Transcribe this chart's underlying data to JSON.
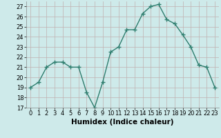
{
  "x": [
    0,
    1,
    2,
    3,
    4,
    5,
    6,
    7,
    8,
    9,
    10,
    11,
    12,
    13,
    14,
    15,
    16,
    17,
    18,
    19,
    20,
    21,
    22,
    23
  ],
  "y": [
    19,
    19.5,
    21,
    21.5,
    21.5,
    21,
    21,
    18.5,
    17,
    19.5,
    22.5,
    23,
    24.7,
    24.7,
    26.3,
    27,
    27.2,
    25.7,
    25.3,
    24.2,
    23,
    21.2,
    21,
    19
  ],
  "xlabel": "Humidex (Indice chaleur)",
  "ylim": [
    17,
    27.5
  ],
  "yticks": [
    17,
    18,
    19,
    20,
    21,
    22,
    23,
    24,
    25,
    26,
    27
  ],
  "xticks": [
    0,
    1,
    2,
    3,
    4,
    5,
    6,
    7,
    8,
    9,
    10,
    11,
    12,
    13,
    14,
    15,
    16,
    17,
    18,
    19,
    20,
    21,
    22,
    23
  ],
  "line_color": "#2e7d6e",
  "marker": "+",
  "marker_size": 4,
  "marker_lw": 1.0,
  "line_width": 1.0,
  "bg_color": "#ceeaea",
  "grid_color": "#c0b0b0",
  "xlabel_fontsize": 7.5,
  "tick_fontsize": 6.0,
  "xlim": [
    -0.5,
    23.5
  ]
}
